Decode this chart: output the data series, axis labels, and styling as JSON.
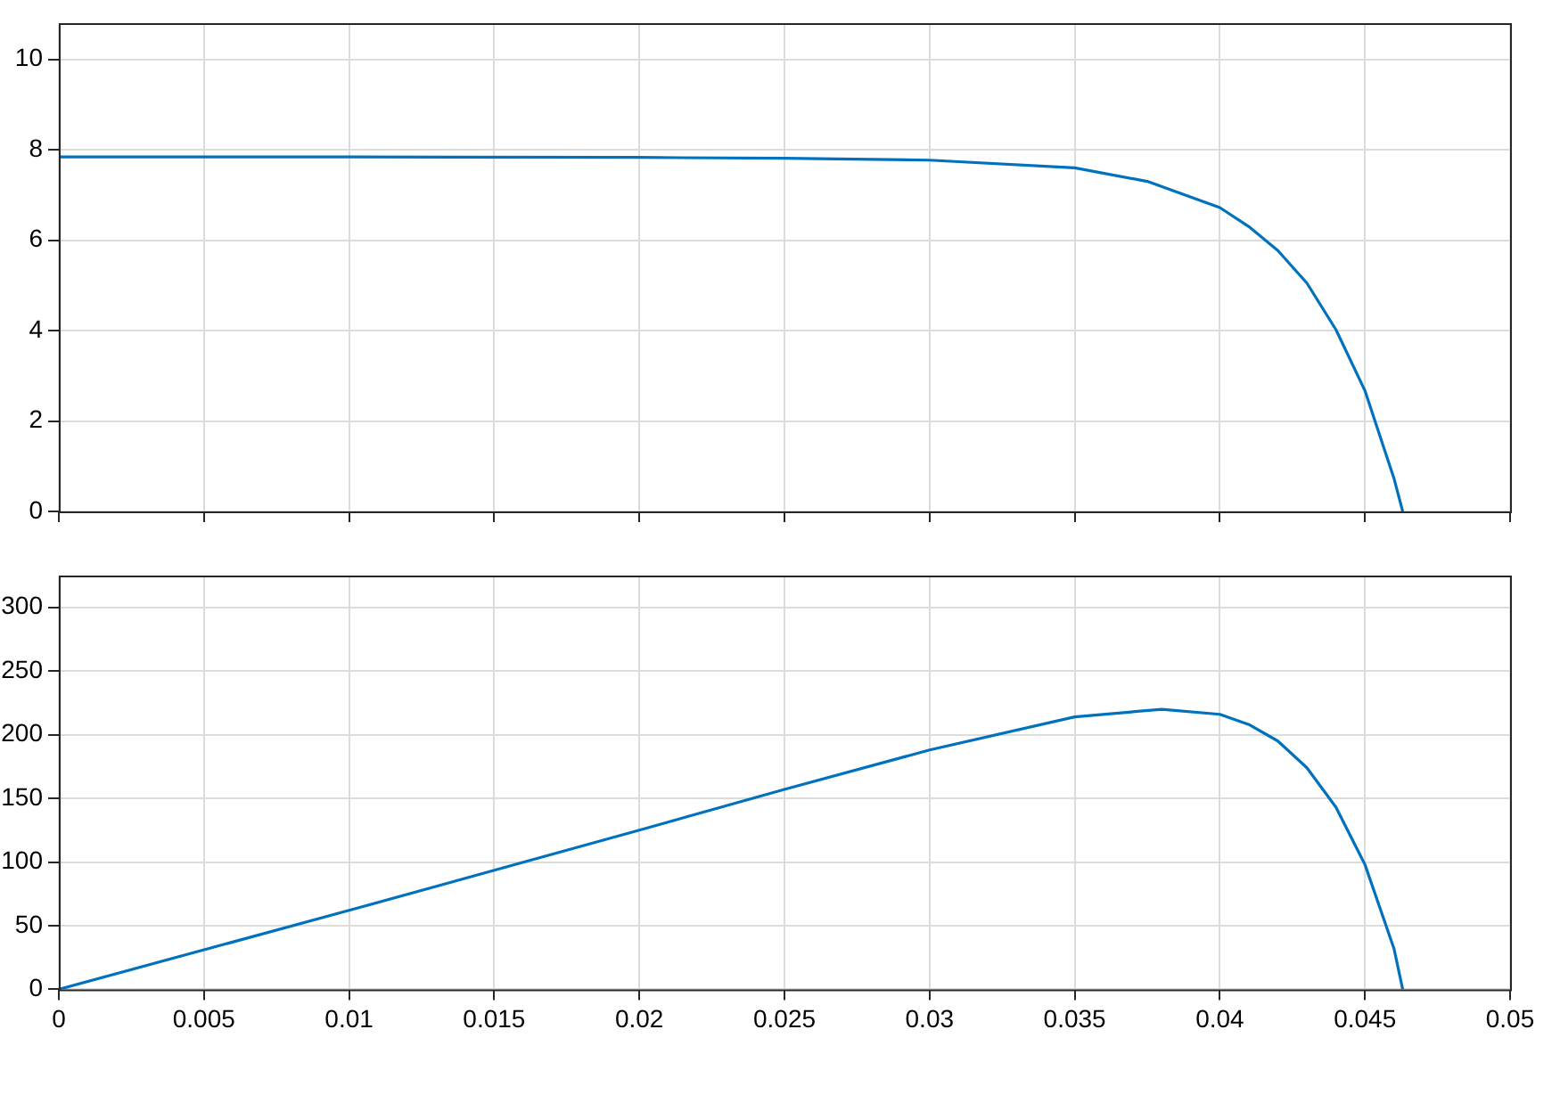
{
  "chart_data": [
    {
      "type": "line",
      "x": [
        0,
        0.01,
        0.02,
        0.025,
        0.03,
        0.035,
        0.0375,
        0.04,
        0.041,
        0.042,
        0.043,
        0.044,
        0.045,
        0.046,
        0.0463
      ],
      "series": [
        {
          "color": "#0072bd",
          "values": [
            7.84,
            7.84,
            7.83,
            7.81,
            7.77,
            7.6,
            7.3,
            6.72,
            6.3,
            5.77,
            5.05,
            4.02,
            2.67,
            0.73,
            0
          ]
        }
      ],
      "xlim": [
        0,
        0.05
      ],
      "xticks": [
        0,
        0.005,
        0.01,
        0.015,
        0.02,
        0.025,
        0.03,
        0.035,
        0.04,
        0.045,
        0.05
      ],
      "ylim": [
        0,
        10.8
      ],
      "yticks": [
        0,
        2,
        4,
        6,
        8,
        10
      ],
      "grid": true,
      "tick_labels": "y"
    },
    {
      "type": "line",
      "x": [
        0,
        0.01,
        0.02,
        0.025,
        0.03,
        0.035,
        0.038,
        0.04,
        0.041,
        0.042,
        0.043,
        0.044,
        0.045,
        0.046,
        0.0463
      ],
      "series": [
        {
          "color": "#0072bd",
          "values": [
            0,
            62,
            125,
            157,
            188,
            214,
            220,
            216,
            208,
            195,
            174,
            143,
            98,
            32,
            0
          ]
        }
      ],
      "xlim": [
        0,
        0.05
      ],
      "xticks": [
        0,
        0.005,
        0.01,
        0.015,
        0.02,
        0.025,
        0.03,
        0.035,
        0.04,
        0.045,
        0.05
      ],
      "ylim": [
        0,
        325
      ],
      "yticks": [
        0,
        50,
        100,
        150,
        200,
        250,
        300
      ],
      "grid": true
    }
  ]
}
